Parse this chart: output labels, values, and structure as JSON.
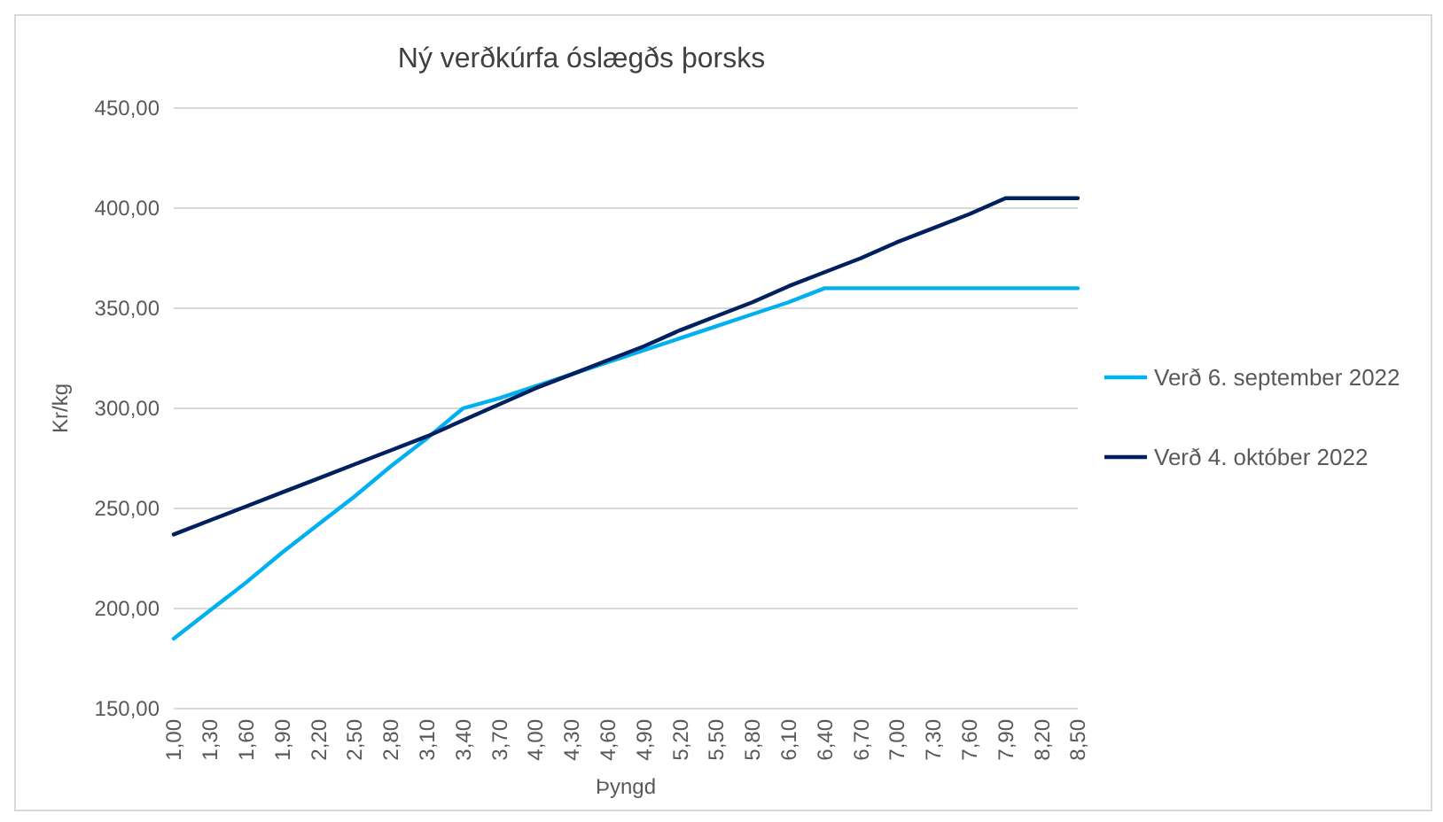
{
  "chart_data": {
    "type": "line",
    "title": "Ný verðkúrfa óslægðs þorsks",
    "xlabel": "Þyngd",
    "ylabel": "Kr/kg",
    "x": [
      1.0,
      1.3,
      1.6,
      1.9,
      2.2,
      2.5,
      2.8,
      3.1,
      3.4,
      3.7,
      4.0,
      4.3,
      4.6,
      4.9,
      5.2,
      5.5,
      5.8,
      6.1,
      6.4,
      6.7,
      7.0,
      7.3,
      7.6,
      7.9,
      8.2,
      8.5
    ],
    "series": [
      {
        "name": "Verð 6. september 2022",
        "color": "#00b0f0",
        "values": [
          185,
          199,
          213,
          228,
          242,
          256,
          271,
          285,
          300,
          305,
          311,
          317,
          323,
          329,
          335,
          341,
          347,
          353,
          360,
          360,
          360,
          360,
          360,
          360,
          360,
          360
        ]
      },
      {
        "name": "Verð 4. október 2022",
        "color": "#002060",
        "values": [
          237,
          244,
          251,
          258,
          265,
          272,
          279,
          286,
          294,
          302,
          310,
          317,
          324,
          331,
          339,
          346,
          353,
          361,
          368,
          375,
          383,
          390,
          397,
          405,
          405,
          405
        ]
      }
    ],
    "xlim": [
      1.0,
      8.5
    ],
    "xticks": [
      {
        "value": 1.0,
        "label": "1,00"
      },
      {
        "value": 1.3,
        "label": "1,30"
      },
      {
        "value": 1.6,
        "label": "1,60"
      },
      {
        "value": 1.9,
        "label": "1,90"
      },
      {
        "value": 2.2,
        "label": "2,20"
      },
      {
        "value": 2.5,
        "label": "2,50"
      },
      {
        "value": 2.8,
        "label": "2,80"
      },
      {
        "value": 3.1,
        "label": "3,10"
      },
      {
        "value": 3.4,
        "label": "3,40"
      },
      {
        "value": 3.7,
        "label": "3,70"
      },
      {
        "value": 4.0,
        "label": "4,00"
      },
      {
        "value": 4.3,
        "label": "4,30"
      },
      {
        "value": 4.6,
        "label": "4,60"
      },
      {
        "value": 4.9,
        "label": "4,90"
      },
      {
        "value": 5.2,
        "label": "5,20"
      },
      {
        "value": 5.5,
        "label": "5,50"
      },
      {
        "value": 5.8,
        "label": "5,80"
      },
      {
        "value": 6.1,
        "label": "6,10"
      },
      {
        "value": 6.4,
        "label": "6,40"
      },
      {
        "value": 6.7,
        "label": "6,70"
      },
      {
        "value": 7.0,
        "label": "7,00"
      },
      {
        "value": 7.3,
        "label": "7,30"
      },
      {
        "value": 7.6,
        "label": "7,60"
      },
      {
        "value": 7.9,
        "label": "7,90"
      },
      {
        "value": 8.2,
        "label": "8,20"
      },
      {
        "value": 8.5,
        "label": "8,50"
      }
    ],
    "ylim": [
      150,
      450
    ],
    "yticks": [
      {
        "value": 150,
        "label": "150,00"
      },
      {
        "value": 200,
        "label": "200,00"
      },
      {
        "value": 250,
        "label": "250,00"
      },
      {
        "value": 300,
        "label": "300,00"
      },
      {
        "value": 350,
        "label": "350,00"
      },
      {
        "value": 400,
        "label": "400,00"
      },
      {
        "value": 450,
        "label": "450,00"
      }
    ],
    "grid": "y",
    "legend": "right",
    "marker": "none",
    "line_style": "solid"
  }
}
